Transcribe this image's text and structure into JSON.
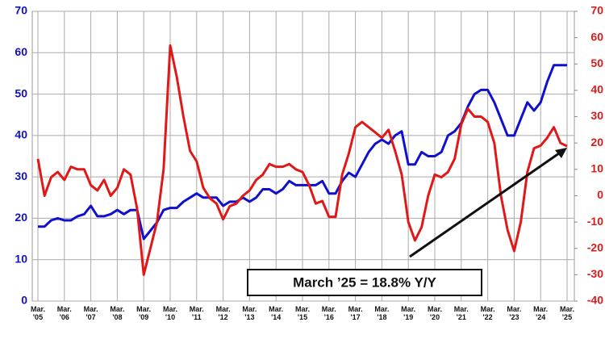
{
  "chart_data": {
    "type": "line",
    "annotation": "March ’25 = 18.8% Y/Y",
    "xlim": [
      2005,
      2025.2
    ],
    "xticks": [
      {
        "value": 2005,
        "label": "Mar. '05"
      },
      {
        "value": 2006,
        "label": "Mar. '06"
      },
      {
        "value": 2007,
        "label": "Mar. '07"
      },
      {
        "value": 2008,
        "label": "Mar. '08"
      },
      {
        "value": 2009,
        "label": "Mar. '09"
      },
      {
        "value": 2010,
        "label": "Mar. '10"
      },
      {
        "value": 2011,
        "label": "Mar. '11"
      },
      {
        "value": 2012,
        "label": "Mar. '12"
      },
      {
        "value": 2013,
        "label": "Mar. '13"
      },
      {
        "value": 2014,
        "label": "Mar. '14"
      },
      {
        "value": 2015,
        "label": "Mar. '15"
      },
      {
        "value": 2016,
        "label": "Mar. '16"
      },
      {
        "value": 2017,
        "label": "Mar. '17"
      },
      {
        "value": 2018,
        "label": "Mar. '18"
      },
      {
        "value": 2019,
        "label": "Mar. '19"
      },
      {
        "value": 2020,
        "label": "Mar. '20"
      },
      {
        "value": 2021,
        "label": "Mar. '21"
      },
      {
        "value": 2022,
        "label": "Mar. '22"
      },
      {
        "value": 2023,
        "label": "Mar. '23"
      },
      {
        "value": 2024,
        "label": "Mar. '24"
      },
      {
        "value": 2025,
        "label": "Mar. '25"
      }
    ],
    "ylim": [
      0,
      70
    ],
    "yticks": [
      0,
      10,
      20,
      30,
      40,
      50,
      60,
      70
    ],
    "y2lim": [
      -40,
      70
    ],
    "y2ticks": [
      -40,
      -30,
      -20,
      -10,
      0,
      10,
      20,
      30,
      40,
      50,
      60,
      70
    ],
    "grid": true,
    "x": [
      2005,
      2005.25,
      2005.5,
      2005.75,
      2006,
      2006.25,
      2006.5,
      2006.75,
      2007,
      2007.25,
      2007.5,
      2007.75,
      2008,
      2008.25,
      2008.5,
      2008.75,
      2009,
      2009.25,
      2009.5,
      2009.75,
      2010,
      2010.25,
      2010.5,
      2010.75,
      2011,
      2011.25,
      2011.5,
      2011.75,
      2012,
      2012.25,
      2012.5,
      2012.75,
      2013,
      2013.25,
      2013.5,
      2013.75,
      2014,
      2014.25,
      2014.5,
      2014.75,
      2015,
      2015.25,
      2015.5,
      2015.75,
      2016,
      2016.25,
      2016.5,
      2016.75,
      2017,
      2017.25,
      2017.5,
      2017.75,
      2018,
      2018.25,
      2018.5,
      2018.75,
      2019,
      2019.25,
      2019.5,
      2019.75,
      2020,
      2020.25,
      2020.5,
      2020.75,
      2021,
      2021.25,
      2021.5,
      2021.75,
      2022,
      2022.25,
      2022.5,
      2022.75,
      2023,
      2023.25,
      2023.5,
      2023.75,
      2024,
      2024.25,
      2024.5,
      2024.75,
      2025
    ],
    "series": [
      {
        "color": "#1010cc",
        "axis": "y",
        "values": [
          18,
          18,
          19.5,
          20,
          19.5,
          19.5,
          20.5,
          21,
          23,
          20.5,
          20.5,
          21,
          22,
          21,
          22,
          22,
          15,
          17,
          19,
          22,
          22.5,
          22.5,
          24,
          25,
          26,
          25,
          25,
          25,
          23,
          24,
          24,
          25,
          24,
          25,
          27,
          27,
          26,
          27,
          29,
          28,
          28,
          28,
          28,
          29,
          26,
          26,
          29,
          31,
          30,
          33,
          36,
          38,
          39,
          38,
          40,
          41,
          33,
          33,
          36,
          35,
          35,
          36,
          40,
          41,
          43,
          47,
          50,
          51,
          51,
          48,
          44,
          40,
          40,
          44,
          48,
          46,
          48,
          53,
          57,
          57,
          57
        ]
      },
      {
        "color": "#e01818",
        "axis": "y2",
        "values": [
          14,
          0,
          7,
          9,
          6,
          11,
          10,
          10,
          4,
          2,
          6,
          0,
          3,
          10,
          8,
          -5,
          -30,
          -20,
          -10,
          10,
          57,
          45,
          30,
          17,
          13,
          3,
          -1,
          -3,
          -9,
          -4,
          -3,
          0,
          2,
          6,
          8,
          12,
          11,
          11,
          12,
          10,
          9,
          4,
          -3,
          -2,
          -8,
          -8,
          8,
          16,
          26,
          28,
          26,
          24,
          22,
          25,
          17,
          8,
          -10,
          -17,
          -12,
          0,
          8,
          7,
          9,
          14,
          27,
          33,
          30,
          30,
          28,
          20,
          0,
          -13,
          -21,
          -10,
          9,
          18,
          19,
          22,
          26,
          20,
          18.8
        ]
      }
    ]
  }
}
